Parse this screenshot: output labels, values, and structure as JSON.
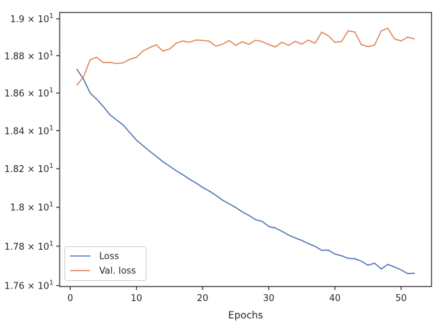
{
  "chart_data": {
    "type": "line",
    "title": "",
    "xlabel": "Epochs",
    "ylabel": "",
    "yscale": "log",
    "xlim": [
      -1.6,
      54.6
    ],
    "ylim": [
      17.595,
      19.035
    ],
    "grid": false,
    "legend_position": "lower-left",
    "x_ticks": [
      0,
      10,
      20,
      30,
      40,
      50
    ],
    "x_tick_labels": [
      "0",
      "10",
      "20",
      "30",
      "40",
      "50"
    ],
    "y_ticks": [
      17.6,
      17.8,
      18.0,
      18.2,
      18.4,
      18.6,
      18.8,
      19.0
    ],
    "y_tick_labels": [
      {
        "mantissa": "1.76",
        "base": "10",
        "exp": "1"
      },
      {
        "mantissa": "1.78",
        "base": "10",
        "exp": "1"
      },
      {
        "mantissa": "1.8",
        "base": "10",
        "exp": "1"
      },
      {
        "mantissa": "1.82",
        "base": "10",
        "exp": "1"
      },
      {
        "mantissa": "1.84",
        "base": "10",
        "exp": "1"
      },
      {
        "mantissa": "1.86",
        "base": "10",
        "exp": "1"
      },
      {
        "mantissa": "1.88",
        "base": "10",
        "exp": "1"
      },
      {
        "mantissa": "1.9",
        "base": "10",
        "exp": "1"
      }
    ],
    "x": [
      1,
      2,
      3,
      4,
      5,
      6,
      7,
      8,
      9,
      10,
      11,
      12,
      13,
      14,
      15,
      16,
      17,
      18,
      19,
      20,
      21,
      22,
      23,
      24,
      25,
      26,
      27,
      28,
      29,
      30,
      31,
      32,
      33,
      34,
      35,
      36,
      37,
      38,
      39,
      40,
      41,
      42,
      43,
      44,
      45,
      46,
      47,
      48,
      49,
      50,
      51,
      52
    ],
    "series": [
      {
        "name": "Loss",
        "color": "#4c72b0",
        "values": [
          18.727,
          18.675,
          18.6,
          18.567,
          18.528,
          18.484,
          18.457,
          18.43,
          18.39,
          18.35,
          18.321,
          18.292,
          18.265,
          18.237,
          18.214,
          18.19,
          18.169,
          18.146,
          18.126,
          18.103,
          18.084,
          18.062,
          18.037,
          18.018,
          17.999,
          17.976,
          17.958,
          17.936,
          17.927,
          17.901,
          17.893,
          17.876,
          17.857,
          17.842,
          17.829,
          17.813,
          17.799,
          17.779,
          17.78,
          17.76,
          17.751,
          17.738,
          17.736,
          17.723,
          17.703,
          17.713,
          17.684,
          17.707,
          17.694,
          17.679,
          17.66,
          17.662
        ]
      },
      {
        "name": "Val. loss",
        "color": "#dd8452",
        "values": [
          18.642,
          18.686,
          18.778,
          18.792,
          18.763,
          18.764,
          18.758,
          18.762,
          18.781,
          18.792,
          18.826,
          18.844,
          18.859,
          18.825,
          18.836,
          18.867,
          18.88,
          18.873,
          18.885,
          18.883,
          18.879,
          18.852,
          18.862,
          18.883,
          18.856,
          18.876,
          18.862,
          18.884,
          18.877,
          18.86,
          18.848,
          18.873,
          18.856,
          18.878,
          18.863,
          18.885,
          18.867,
          18.928,
          18.908,
          18.873,
          18.877,
          18.935,
          18.929,
          18.86,
          18.849,
          18.858,
          18.935,
          18.949,
          18.891,
          18.88,
          18.901,
          18.891
        ]
      }
    ]
  }
}
